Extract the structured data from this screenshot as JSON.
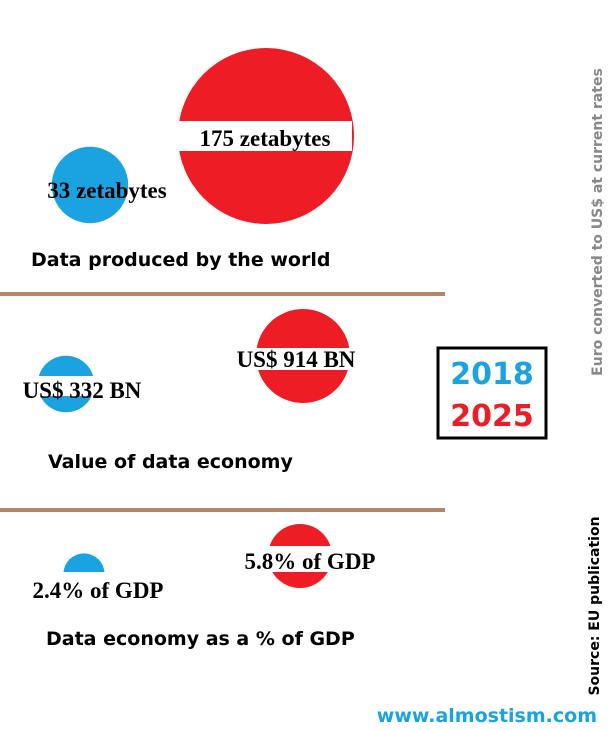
{
  "chart_data": {
    "type": "bubble",
    "colors": {
      "2018": "#1aa3e0",
      "2025": "#ee1c25",
      "divider": "#b5866a",
      "source_note": "#888888"
    },
    "legend": {
      "years": [
        "2018",
        "2025"
      ],
      "placement": "right"
    },
    "panels": [
      {
        "title": "Data produced by the world",
        "unit": "zetabytes",
        "values": {
          "2018": 33,
          "2025": 175
        },
        "labels": {
          "2018": "33 zetabytes",
          "2025": "175 zetabytes"
        }
      },
      {
        "title": "Value of data economy",
        "unit": "US$ BN",
        "values": {
          "2018": 332,
          "2025": 914
        },
        "labels": {
          "2018": "US$ 332 BN",
          "2025": "US$ 914 BN"
        }
      },
      {
        "title": "Data economy as a % of GDP",
        "unit": "% of GDP",
        "values": {
          "2018": 2.4,
          "2025": 5.8
        },
        "labels": {
          "2018": "2.4% of GDP",
          "2025": "5.8% of GDP"
        }
      }
    ],
    "notes": {
      "currency": "Euro converted to US$ at current rates",
      "source": "Source: EU publication",
      "website": "www.almostism.com"
    }
  }
}
